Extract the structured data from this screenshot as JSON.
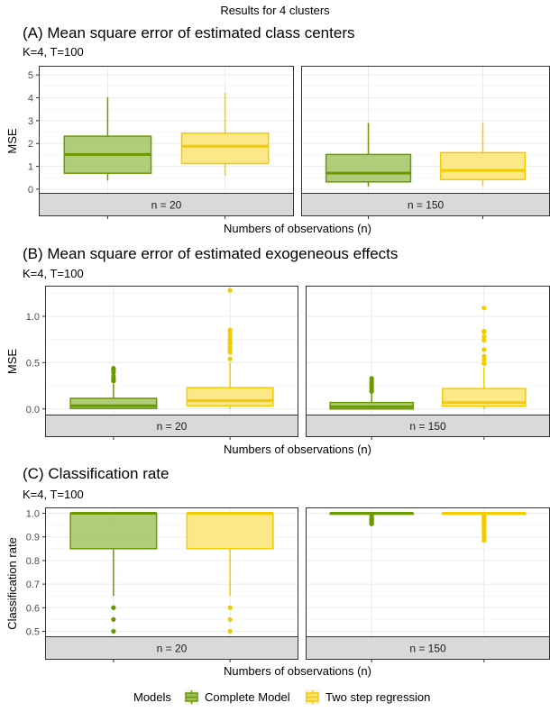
{
  "figure": {
    "super_title": "Results for 4 clusters",
    "legend": {
      "title": "Models",
      "entries": [
        {
          "name": "Complete Model",
          "fill": "#9bbd5a",
          "stroke": "#6a9a00"
        },
        {
          "name": "Two step regression",
          "fill": "#fde36e",
          "stroke": "#f2cc00"
        }
      ]
    }
  },
  "colors": {
    "complete_stroke": "#6a9a00",
    "complete_fill": "#a8c66c",
    "twostep_stroke": "#f2cc00",
    "twostep_fill": "#fde57a",
    "panel_border": "#333333",
    "strip_fill": "#d9d9d9",
    "grid": "#ebebeb"
  },
  "chart_data": [
    {
      "type": "boxplot",
      "title": "(A) Mean square error of estimated class centers",
      "subtitle": "K=4, T=100",
      "xlabel": "Numbers of observations (n)",
      "ylabel": "MSE",
      "ylim": [
        -0.2,
        5.4
      ],
      "yticks": [
        0,
        1,
        2,
        3,
        4,
        5
      ],
      "ytick_labels": [
        "0",
        "1",
        "2",
        "3",
        "4",
        "5"
      ],
      "facets": [
        {
          "strip": "n = 20",
          "boxes": [
            {
              "series": "Complete Model",
              "q1": 0.7,
              "median": 1.52,
              "q3": 2.32,
              "whisker_low": 0.38,
              "whisker_high": 4.02,
              "outliers": []
            },
            {
              "series": "Two step regression",
              "q1": 1.12,
              "median": 1.88,
              "q3": 2.45,
              "whisker_low": 0.6,
              "whisker_high": 4.22,
              "outliers": []
            }
          ]
        },
        {
          "strip": "n = 150",
          "boxes": [
            {
              "series": "Complete Model",
              "q1": 0.32,
              "median": 0.7,
              "q3": 1.52,
              "whisker_low": 0.12,
              "whisker_high": 2.9,
              "outliers": []
            },
            {
              "series": "Two step regression",
              "q1": 0.42,
              "median": 0.82,
              "q3": 1.6,
              "whisker_low": 0.15,
              "whisker_high": 2.92,
              "outliers": []
            }
          ]
        }
      ]
    },
    {
      "type": "boxplot",
      "title": "(B) Mean square error of estimated exogeneous effects",
      "subtitle": "K=4, T=100",
      "xlabel": "Numbers of observations (n)",
      "ylabel": "MSE",
      "ylim": [
        -0.07,
        1.33
      ],
      "yticks": [
        0,
        0.5,
        1
      ],
      "ytick_labels": [
        "0.0",
        "0.5",
        "1.0"
      ],
      "facets": [
        {
          "strip": "n = 20",
          "boxes": [
            {
              "series": "Complete Model",
              "q1": 0.005,
              "median": 0.035,
              "q3": 0.115,
              "whisker_low": 0.0,
              "whisker_high": 0.27,
              "outliers": [
                0.3,
                0.31,
                0.33,
                0.35,
                0.39,
                0.41,
                0.43,
                0.44
              ]
            },
            {
              "series": "Two step regression",
              "q1": 0.035,
              "median": 0.09,
              "q3": 0.23,
              "whisker_low": 0.0,
              "whisker_high": 0.5,
              "outliers": [
                0.54,
                0.61,
                0.64,
                0.66,
                0.7,
                0.72,
                0.75,
                0.79,
                0.83,
                0.85,
                1.28
              ]
            }
          ]
        },
        {
          "strip": "n = 150",
          "boxes": [
            {
              "series": "Complete Model",
              "q1": 0.0,
              "median": 0.025,
              "q3": 0.07,
              "whisker_low": 0.0,
              "whisker_high": 0.17,
              "outliers": [
                0.19,
                0.2,
                0.22,
                0.24,
                0.26,
                0.28,
                0.3,
                0.33
              ]
            },
            {
              "series": "Two step regression",
              "q1": 0.03,
              "median": 0.07,
              "q3": 0.22,
              "whisker_low": 0.0,
              "whisker_high": 0.45,
              "outliers": [
                0.49,
                0.53,
                0.57,
                0.64,
                0.74,
                0.78,
                0.83,
                0.84,
                1.09
              ]
            }
          ]
        }
      ]
    },
    {
      "type": "boxplot",
      "title": "(C) Classification rate",
      "subtitle": "K=4, T=100",
      "xlabel": "Numbers of observations (n)",
      "ylabel": "Classification rate",
      "ylim": [
        0.475,
        1.025
      ],
      "yticks": [
        0.5,
        0.6,
        0.7,
        0.8,
        0.9,
        1.0
      ],
      "ytick_labels": [
        "0.5",
        "0.6",
        "0.7",
        "0.8",
        "0.9",
        "1.0"
      ],
      "facets": [
        {
          "strip": "n = 20",
          "boxes": [
            {
              "series": "Complete Model",
              "q1": 0.85,
              "median": 1.0,
              "q3": 1.0,
              "whisker_low": 0.65,
              "whisker_high": 1.0,
              "outliers": [
                0.6,
                0.55,
                0.5
              ]
            },
            {
              "series": "Two step regression",
              "q1": 0.85,
              "median": 1.0,
              "q3": 1.0,
              "whisker_low": 0.65,
              "whisker_high": 1.0,
              "outliers": [
                0.6,
                0.55,
                0.5
              ]
            }
          ]
        },
        {
          "strip": "n = 150",
          "boxes": [
            {
              "series": "Complete Model",
              "q1": 1.0,
              "median": 1.0,
              "q3": 1.0,
              "whisker_low": 1.0,
              "whisker_high": 1.0,
              "outliers": [
                0.99,
                0.98,
                0.975,
                0.97,
                0.965,
                0.96,
                0.955
              ]
            },
            {
              "series": "Two step regression",
              "q1": 1.0,
              "median": 1.0,
              "q3": 1.0,
              "whisker_low": 1.0,
              "whisker_high": 1.0,
              "outliers": [
                0.99,
                0.985,
                0.98,
                0.975,
                0.97,
                0.965,
                0.96,
                0.955,
                0.95,
                0.945,
                0.94,
                0.93,
                0.92,
                0.91,
                0.9,
                0.89,
                0.885
              ]
            }
          ]
        }
      ]
    }
  ]
}
